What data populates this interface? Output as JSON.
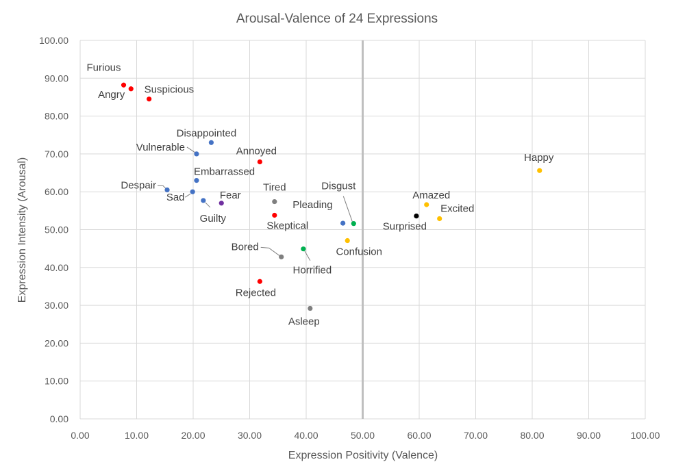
{
  "chart_data": {
    "type": "scatter",
    "title": "Arousal-Valence of 24 Expressions",
    "xlabel": "Expression  Positivity (Valence)",
    "ylabel": "Expression  Intensity (Arousal)",
    "xlim": [
      0,
      100
    ],
    "ylim": [
      0,
      100
    ],
    "x_ticks": [
      "0.00",
      "10.00",
      "20.00",
      "30.00",
      "40.00",
      "50.00",
      "60.00",
      "70.00",
      "80.00",
      "90.00",
      "100.00"
    ],
    "y_ticks": [
      "0.00",
      "10.00",
      "20.00",
      "30.00",
      "40.00",
      "50.00",
      "60.00",
      "70.00",
      "80.00",
      "90.00",
      "100.00"
    ],
    "grid": true,
    "vertical_reference_line_x": 50,
    "colors": {
      "red": "#ff0000",
      "blue": "#4472c4",
      "purple": "#7030a0",
      "gray": "#7f7f7f",
      "green": "#00b050",
      "yellow": "#ffc000",
      "black": "#000000"
    },
    "points": [
      {
        "label": "Furious",
        "x": 7.7,
        "y": 88.2,
        "color": "red"
      },
      {
        "label": "Angry",
        "x": 9.0,
        "y": 87.2,
        "color": "red"
      },
      {
        "label": "Suspicious",
        "x": 12.2,
        "y": 84.5,
        "color": "red"
      },
      {
        "label": "Disappointed",
        "x": 23.2,
        "y": 73.0,
        "color": "blue"
      },
      {
        "label": "Vulnerable",
        "x": 20.6,
        "y": 70.0,
        "color": "blue"
      },
      {
        "label": "Annoyed",
        "x": 31.8,
        "y": 67.9,
        "color": "red"
      },
      {
        "label": "Embarrassed",
        "x": 20.6,
        "y": 63.0,
        "color": "blue"
      },
      {
        "label": "Despair",
        "x": 15.4,
        "y": 60.5,
        "color": "blue"
      },
      {
        "label": "Sad",
        "x": 19.9,
        "y": 60.0,
        "color": "blue"
      },
      {
        "label": "Guilty",
        "x": 21.8,
        "y": 57.7,
        "color": "blue"
      },
      {
        "label": "Fear",
        "x": 25.0,
        "y": 57.0,
        "color": "purple"
      },
      {
        "label": "Tired",
        "x": 34.4,
        "y": 57.4,
        "color": "gray"
      },
      {
        "label": "Skeptical",
        "x": 34.4,
        "y": 53.8,
        "color": "red"
      },
      {
        "label": "Pleading",
        "x": 46.5,
        "y": 51.7,
        "color": "blue"
      },
      {
        "label": "Disgust",
        "x": 48.4,
        "y": 51.6,
        "color": "green"
      },
      {
        "label": "Confusion",
        "x": 47.3,
        "y": 47.1,
        "color": "yellow"
      },
      {
        "label": "Horrified",
        "x": 39.5,
        "y": 44.9,
        "color": "green"
      },
      {
        "label": "Bored",
        "x": 35.6,
        "y": 42.8,
        "color": "gray"
      },
      {
        "label": "Rejected",
        "x": 31.8,
        "y": 36.3,
        "color": "red"
      },
      {
        "label": "Asleep",
        "x": 40.7,
        "y": 29.2,
        "color": "gray"
      },
      {
        "label": "Happy",
        "x": 81.3,
        "y": 65.6,
        "color": "yellow"
      },
      {
        "label": "Amazed",
        "x": 61.3,
        "y": 56.6,
        "color": "yellow"
      },
      {
        "label": "Excited",
        "x": 63.6,
        "y": 52.9,
        "color": "yellow"
      },
      {
        "label": "Surprised",
        "x": 59.5,
        "y": 53.6,
        "color": "black"
      }
    ]
  }
}
